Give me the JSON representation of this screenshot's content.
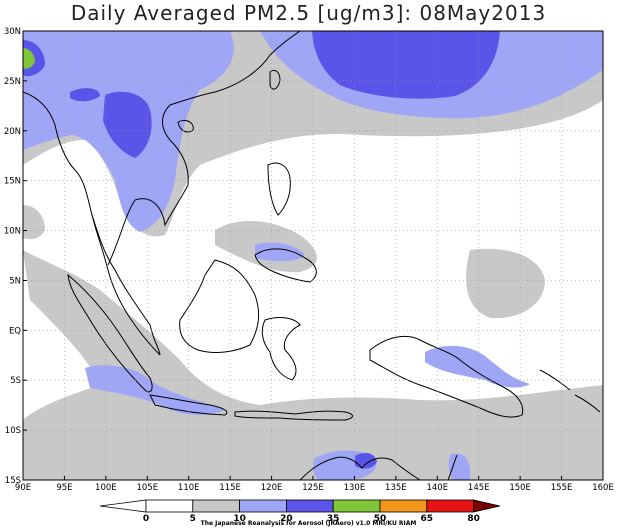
{
  "title": "Daily Averaged PM2.5 [ug/m3]: 08May2013",
  "credit": "The Japanese Reanalysis for Aerosol (JRAero) v1.0 MRI/KU RIAM",
  "map": {
    "region": "Southeast Asia",
    "lon_range": [
      90,
      160
    ],
    "lat_range": [
      -15,
      30
    ],
    "lon_labels": [
      "90E",
      "95E",
      "100E",
      "105E",
      "110E",
      "115E",
      "120E",
      "125E",
      "130E",
      "135E",
      "140E",
      "145E",
      "150E",
      "155E",
      "160E"
    ],
    "lat_labels": [
      "30N",
      "25N",
      "20N",
      "15N",
      "10N",
      "5N",
      "EQ",
      "5S",
      "10S",
      "15S"
    ],
    "grid": true
  },
  "colorbar": {
    "ticks": [
      "0",
      "5",
      "10",
      "20",
      "35",
      "50",
      "65",
      "80"
    ],
    "colors": {
      "0-5": "#ffffff",
      "5-10": "#c8c8c8",
      "10-20": "#9ea6f5",
      "20-35": "#5a55e8",
      "35-50": "#7fc639",
      "50-65": "#f1961a",
      "65-80": "#e51313",
      "80+": "#7b0000"
    }
  }
}
